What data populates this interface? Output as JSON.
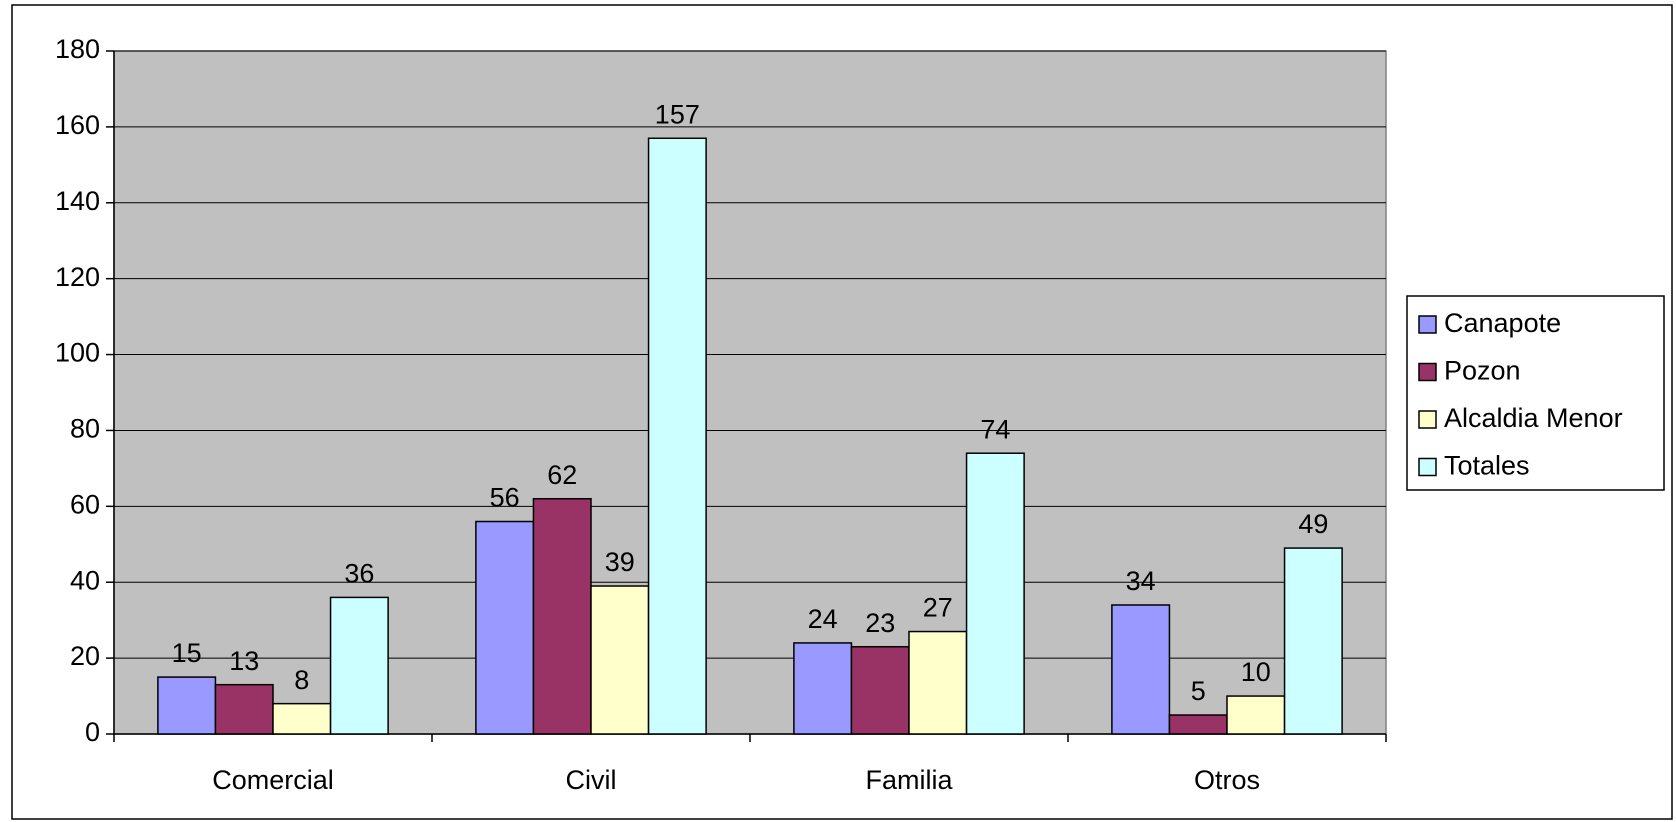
{
  "chart_data": {
    "type": "bar",
    "categories": [
      "Comercial",
      "Civil",
      "Familia",
      "Otros"
    ],
    "series": [
      {
        "name": "Canapote",
        "color": "#9999ff",
        "values": [
          15,
          56,
          24,
          34
        ]
      },
      {
        "name": "Pozon",
        "color": "#993366",
        "values": [
          13,
          62,
          23,
          5
        ]
      },
      {
        "name": "Alcaldia Menor",
        "color": "#ffffcc",
        "values": [
          8,
          39,
          27,
          10
        ]
      },
      {
        "name": "Totales",
        "color": "#ccffff",
        "values": [
          36,
          157,
          74,
          49
        ]
      }
    ],
    "ylim": [
      0,
      180
    ],
    "yticks": [
      0,
      20,
      40,
      60,
      80,
      100,
      120,
      140,
      160,
      180
    ],
    "grid": true,
    "legend": "right",
    "plot_background": "#c0c0c0"
  }
}
